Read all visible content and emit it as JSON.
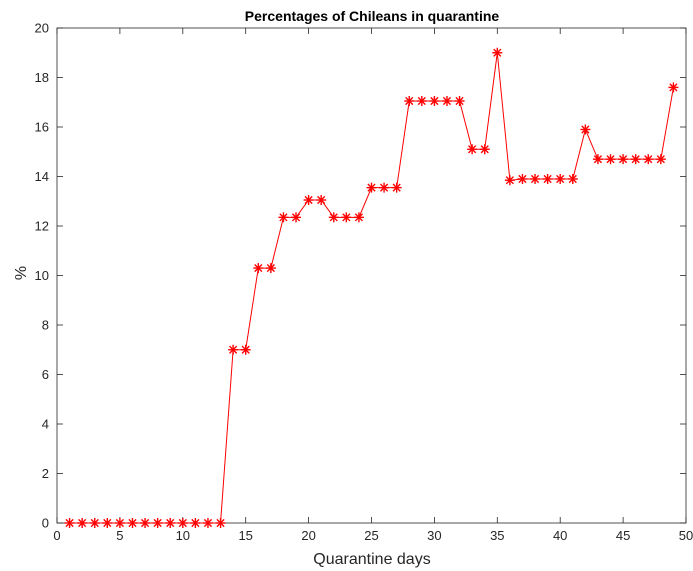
{
  "chart_data": {
    "type": "line",
    "title": "Percentages of Chileans in quarantine",
    "xlabel": "Quarantine days",
    "ylabel": "%",
    "xlim": [
      0,
      50
    ],
    "ylim": [
      0,
      20
    ],
    "x_ticks": [
      0,
      5,
      10,
      15,
      20,
      25,
      30,
      35,
      40,
      45,
      50
    ],
    "y_ticks": [
      0,
      2,
      4,
      6,
      8,
      10,
      12,
      14,
      16,
      18,
      20
    ],
    "grid": false,
    "legend": false,
    "marker": "asterisk",
    "colors": {
      "series": "#ff0000",
      "axes": "#262626"
    },
    "series": [
      {
        "x": [
          1,
          2,
          3,
          4,
          5,
          6,
          7,
          8,
          9,
          10,
          11,
          12,
          13,
          14,
          15,
          16,
          17,
          18,
          19,
          20,
          21,
          22,
          23,
          24,
          25,
          26,
          27,
          28,
          29,
          30,
          31,
          32,
          33,
          34,
          35,
          36,
          37,
          38,
          39,
          40,
          41,
          42,
          43,
          44,
          45,
          46,
          47,
          48,
          49
        ],
        "values": [
          0,
          0,
          0,
          0,
          0,
          0,
          0,
          0,
          0,
          0,
          0,
          0,
          0,
          7.0,
          7.0,
          10.3,
          10.3,
          12.35,
          12.35,
          13.05,
          13.05,
          12.35,
          12.35,
          12.35,
          13.55,
          13.55,
          13.55,
          17.05,
          17.05,
          17.05,
          17.05,
          17.05,
          15.1,
          15.1,
          19.0,
          13.85,
          13.9,
          13.9,
          13.9,
          13.9,
          13.9,
          15.9,
          14.7,
          14.7,
          14.7,
          14.7,
          14.7,
          14.7,
          17.6
        ]
      }
    ]
  }
}
